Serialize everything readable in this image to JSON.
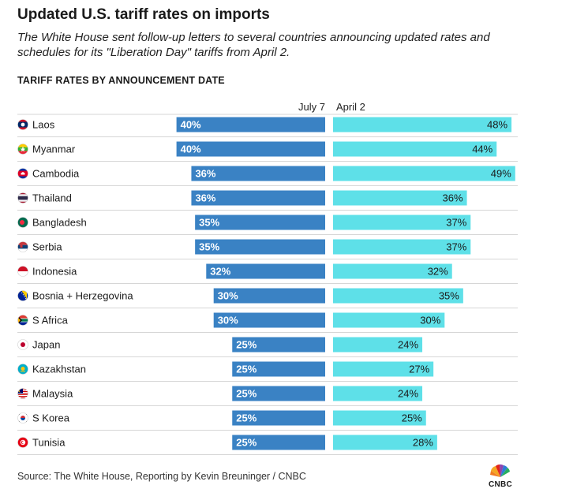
{
  "header": {
    "title": "Updated U.S. tariff rates on imports",
    "subtitle": "The White House sent follow-up letters to several countries announcing updated rates and schedules for its \"Liberation Day\" tariffs from April 2.",
    "section": "TARIFF RATES BY ANNOUNCEMENT DATE"
  },
  "footer": {
    "source": "Source: The White House, Reporting by Kevin Breuninger / CNBC",
    "logo": "CNBC"
  },
  "colors": {
    "july": "#3a82c4",
    "april": "#5ee0e8",
    "grid": "#d6d6d6"
  },
  "chart_data": {
    "type": "bar",
    "title": "Updated U.S. tariff rates on imports",
    "categories": [
      "Laos",
      "Myanmar",
      "Cambodia",
      "Thailand",
      "Bangladesh",
      "Serbia",
      "Indonesia",
      "Bosnia + Herzegovina",
      "S Africa",
      "Japan",
      "Kazakhstan",
      "Malaysia",
      "S Korea",
      "Tunisia"
    ],
    "series": [
      {
        "name": "July 7",
        "values": [
          40,
          40,
          36,
          36,
          35,
          35,
          32,
          30,
          30,
          25,
          25,
          25,
          25,
          25
        ]
      },
      {
        "name": "April 2",
        "values": [
          48,
          44,
          49,
          36,
          37,
          37,
          32,
          35,
          30,
          24,
          27,
          24,
          25,
          28
        ]
      }
    ],
    "flags": [
      "laos",
      "myanmar",
      "cambodia",
      "thailand",
      "bangladesh",
      "serbia",
      "indonesia",
      "bosnia",
      "south-africa",
      "japan",
      "kazakhstan",
      "malaysia",
      "south-korea",
      "tunisia"
    ],
    "unit": "%",
    "xlim": [
      0,
      100
    ]
  }
}
